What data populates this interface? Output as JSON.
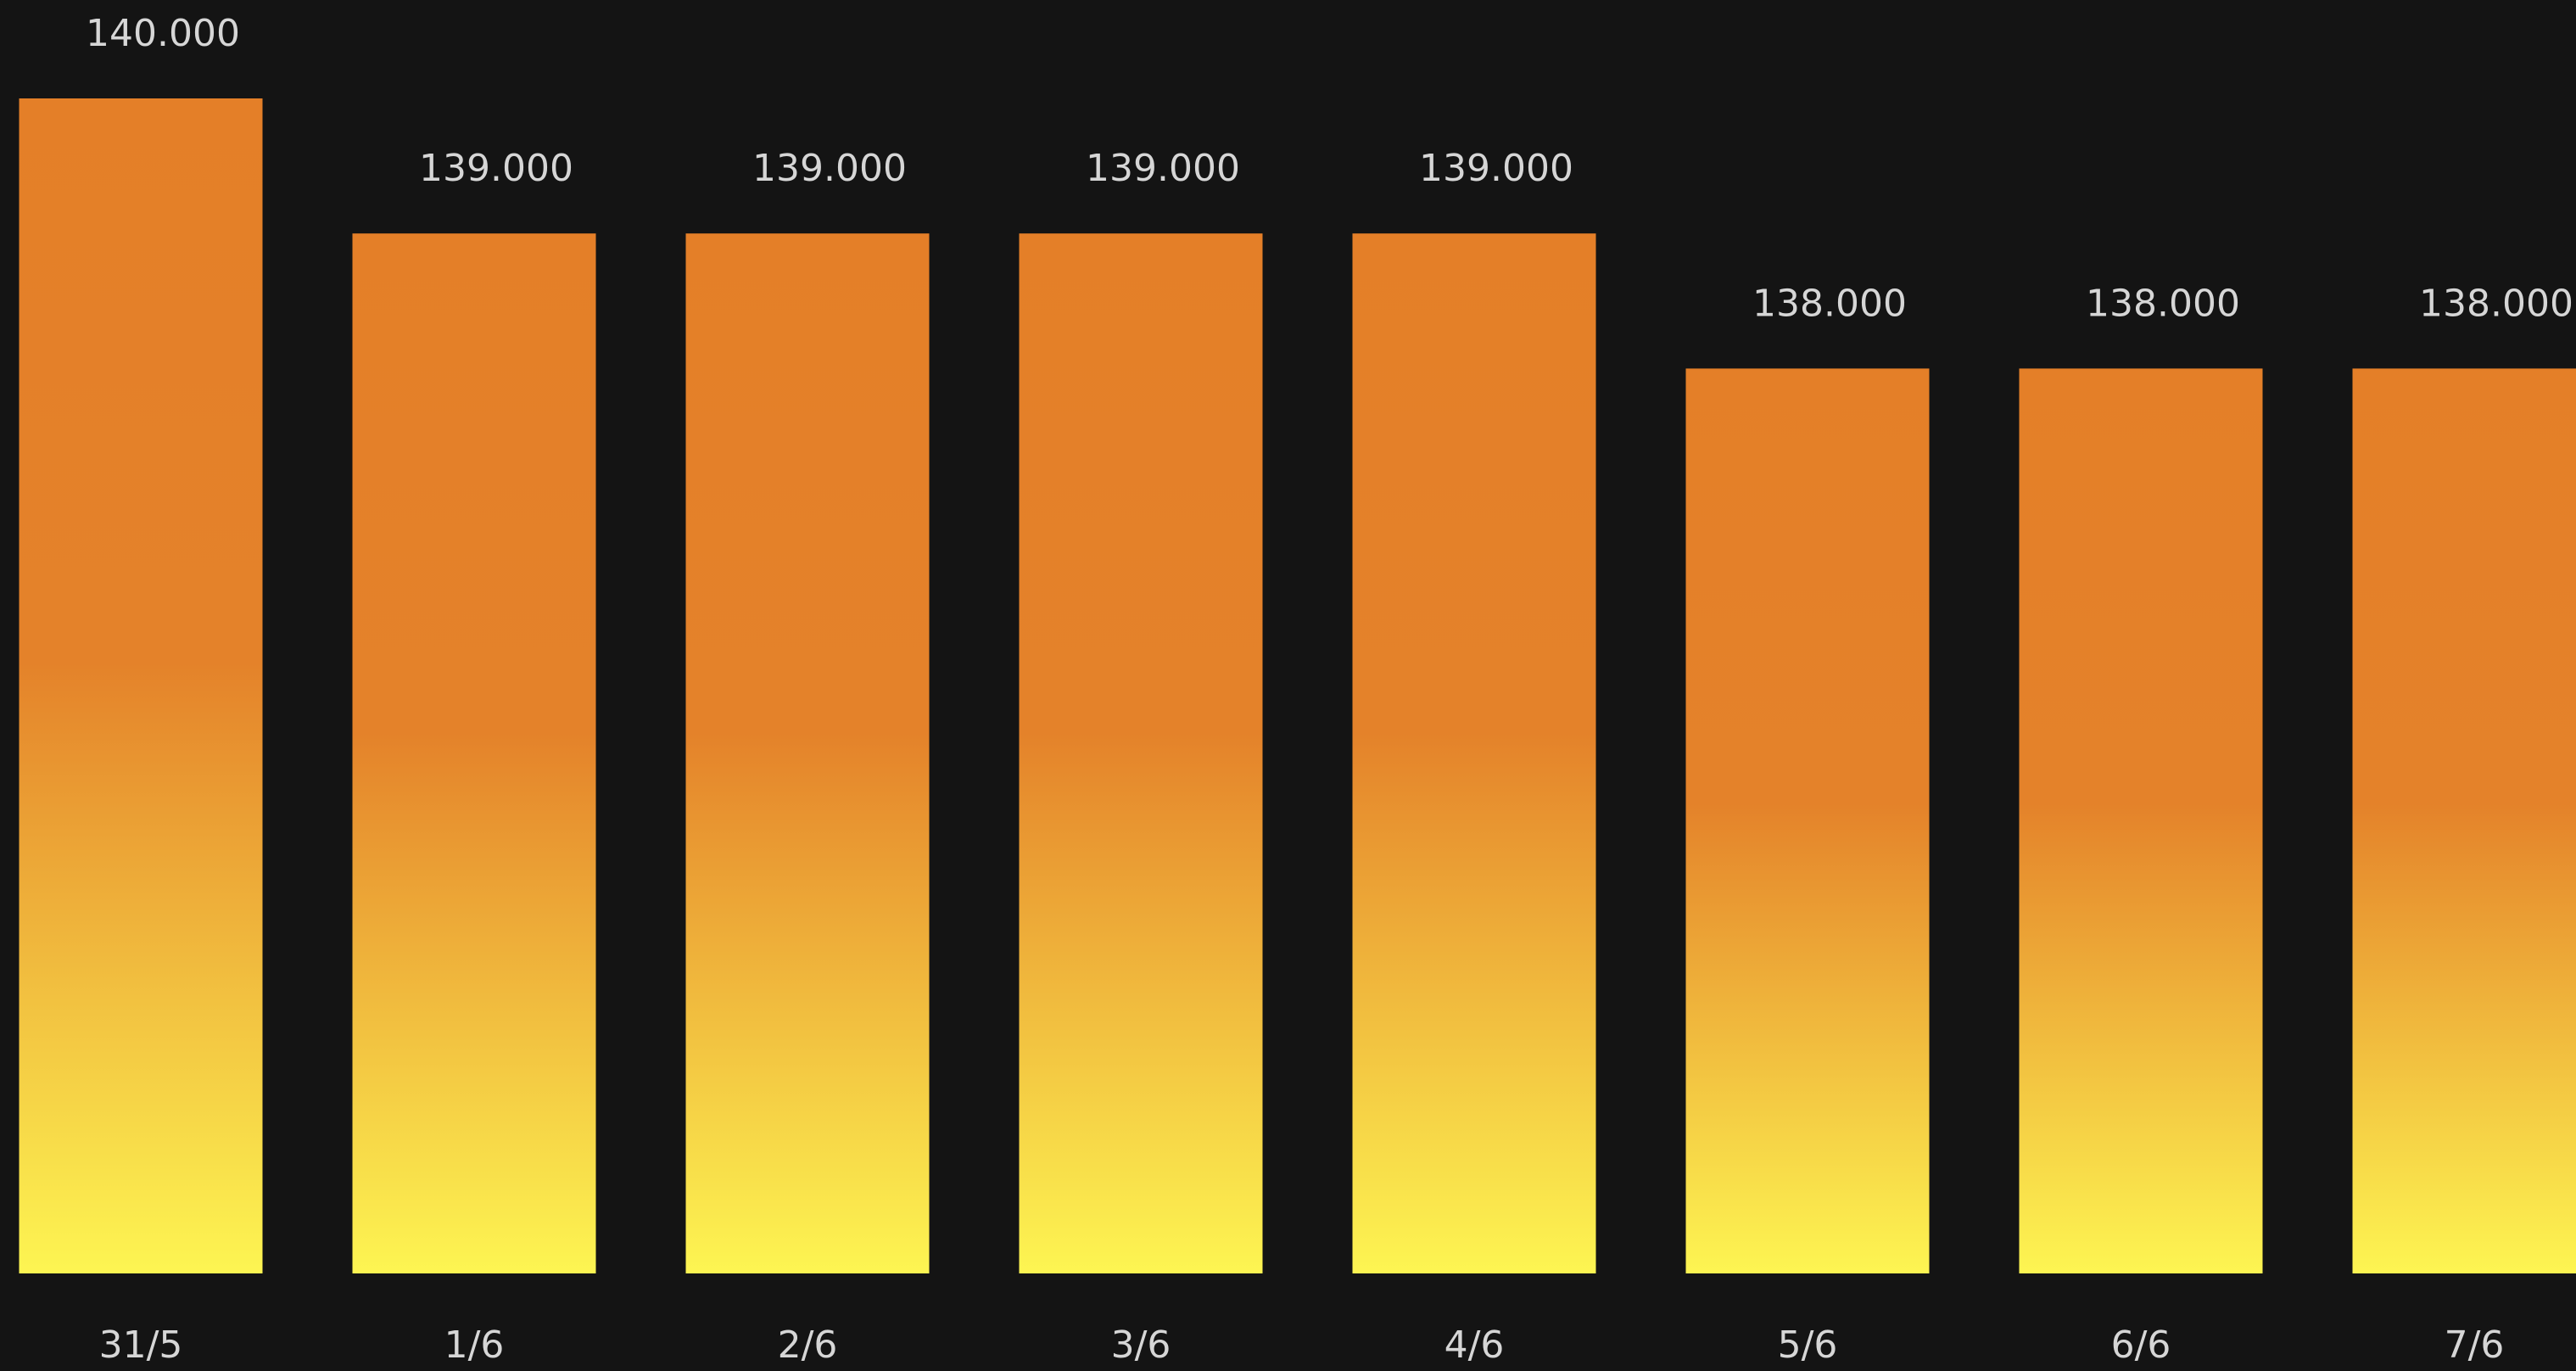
{
  "chart_data": {
    "type": "bar",
    "categories": [
      "31/5",
      "1/6",
      "2/6",
      "3/6",
      "4/6",
      "5/6",
      "6/6",
      "7/6"
    ],
    "values": [
      140000,
      139000,
      139000,
      139000,
      139000,
      138000,
      138000,
      138000
    ],
    "value_labels": [
      "140.000",
      "139.000",
      "139.000",
      "139.000",
      "139.000",
      "138.000",
      "138.000",
      "138.000"
    ],
    "gradient": [
      "#e47f28",
      "#e4822a",
      "#fdf552"
    ],
    "ylim": [
      131300,
      140000
    ]
  }
}
